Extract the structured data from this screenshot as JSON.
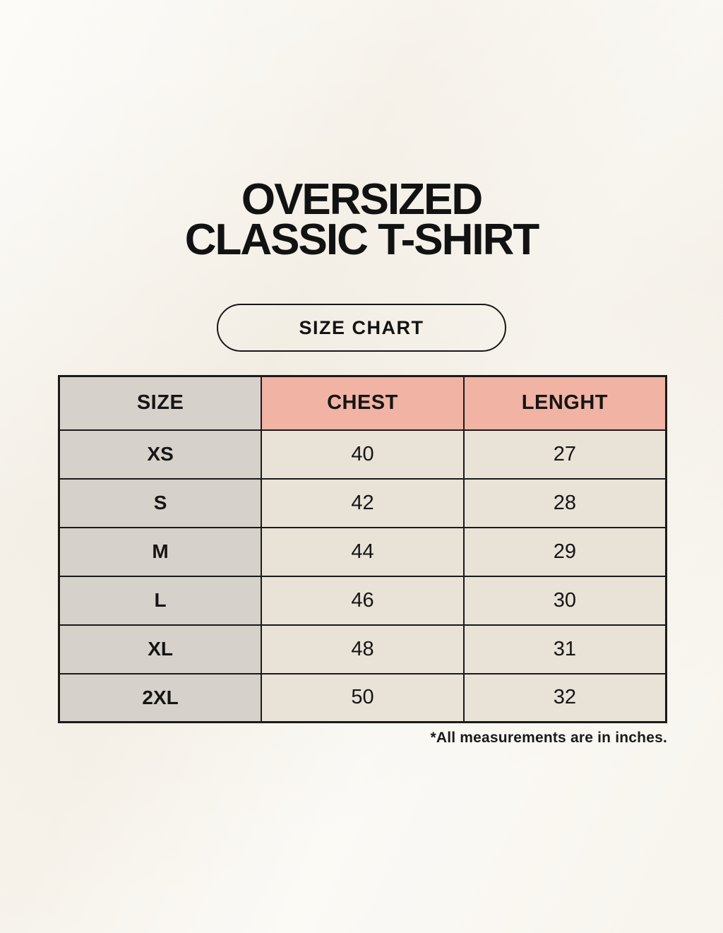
{
  "page": {
    "title_line1": "OVERSIZED",
    "title_line2": "CLASSIC T-SHIRT",
    "badge_label": "SIZE CHART",
    "footnote": "*All measurements are in inches."
  },
  "colors": {
    "background": "#f7f3ea",
    "size_column_bg": "#d7d1cb",
    "measure_header_bg": "#f1b3a3",
    "value_cell_bg": "#e9e2d7",
    "border": "#1a1a1a",
    "text": "#151515"
  },
  "chart_data": {
    "type": "table",
    "title": "OVERSIZED CLASSIC T-SHIRT",
    "subtitle": "SIZE CHART",
    "units": "inches",
    "columns": [
      "SIZE",
      "CHEST",
      "LENGHT"
    ],
    "rows": [
      [
        "XS",
        40,
        27
      ],
      [
        "S",
        42,
        28
      ],
      [
        "M",
        44,
        29
      ],
      [
        "L",
        46,
        30
      ],
      [
        "XL",
        48,
        31
      ],
      [
        "2XL",
        50,
        32
      ]
    ],
    "note": "*All measurements are in inches.",
    "layout": "header row shaded; SIZE column grey, CHEST and LENGHT headers salmon pink, value cells cream; black grid borders"
  }
}
